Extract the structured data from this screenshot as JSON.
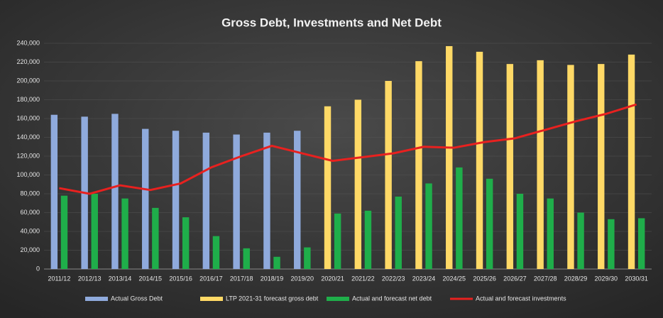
{
  "chart_data": {
    "type": "bar",
    "title": "Gross Debt, Investments and Net Debt",
    "categories": [
      "2011/12",
      "2012/13",
      "2013/14",
      "2014/15",
      "2015/16",
      "2016/17",
      "2017/18",
      "2018/19",
      "2019/20",
      "2020/21",
      "2021/22",
      "2022/23",
      "2023/24",
      "2024/25",
      "2025/26",
      "2026/27",
      "2027/28",
      "2028/29",
      "2029/30",
      "2030/31"
    ],
    "series": [
      {
        "name": "Actual Gross Debt",
        "color": "#8faadc",
        "type": "bar",
        "values": [
          164000,
          162000,
          165000,
          149000,
          147000,
          145000,
          143000,
          145000,
          147000,
          null,
          null,
          null,
          null,
          null,
          null,
          null,
          null,
          null,
          null,
          null
        ]
      },
      {
        "name": "LTP 2021-31 forecast gross debt",
        "color": "#ffd966",
        "type": "bar",
        "values": [
          null,
          null,
          null,
          null,
          null,
          null,
          null,
          null,
          null,
          173000,
          180000,
          200000,
          221000,
          237000,
          231000,
          218000,
          222000,
          217000,
          218000,
          228000
        ]
      },
      {
        "name": "Actual and forecast net debt",
        "color": "#1fae4a",
        "type": "bar",
        "values": [
          78000,
          80000,
          75000,
          65000,
          55000,
          35000,
          22000,
          13000,
          23000,
          59000,
          62000,
          77000,
          91000,
          108000,
          96000,
          80000,
          75000,
          60000,
          53000,
          54000
        ]
      },
      {
        "name": "Actual and forecast investments",
        "color": "#e8211f",
        "type": "line",
        "values": [
          86000,
          80000,
          89000,
          84000,
          91000,
          108000,
          120000,
          131000,
          123000,
          115000,
          119000,
          123000,
          130000,
          129000,
          135000,
          139000,
          148000,
          157000,
          165000,
          175000
        ]
      }
    ],
    "ylim": [
      0,
      240000
    ],
    "yticks": [
      0,
      {
        "value": 20000,
        "label": "20,000"
      },
      {
        "value": 40000,
        "label": "40,000"
      },
      {
        "value": 60000,
        "label": "60,000"
      },
      {
        "value": 80000,
        "label": "80,000"
      },
      {
        "value": 100000,
        "label": "100,000"
      },
      {
        "value": 120000,
        "label": "120,000"
      },
      {
        "value": 140000,
        "label": "140,000"
      },
      {
        "value": 160000,
        "label": "160,000"
      },
      {
        "value": 180000,
        "label": "180,000"
      },
      {
        "value": 200000,
        "label": "200,000"
      },
      {
        "value": 220000,
        "label": "220,000"
      },
      {
        "value": 240000,
        "label": "240,000"
      }
    ],
    "grid": true,
    "legend": "bottom"
  }
}
